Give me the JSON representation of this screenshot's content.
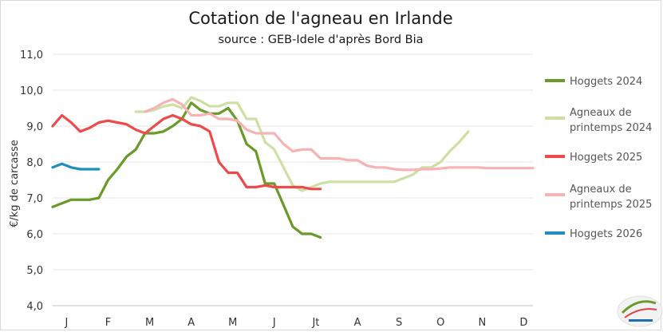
{
  "chart_data": {
    "type": "line",
    "title": "Cotation de l'agneau en Irlande",
    "subtitle": "source : GEB-Idele d'après Bord Bia",
    "ylabel": "€/kg de carcasse",
    "xlabel": "",
    "ylim": [
      4.0,
      11.0
    ],
    "yticks": [
      "4,0",
      "5,0",
      "6,0",
      "7,0",
      "8,0",
      "9,0",
      "10,0",
      "11,0"
    ],
    "xlim": [
      1,
      53
    ],
    "xtick_labels": [
      {
        "label": "J",
        "week": 2.5
      },
      {
        "label": "F",
        "week": 7
      },
      {
        "label": "M",
        "week": 11.5
      },
      {
        "label": "A",
        "week": 16
      },
      {
        "label": "M",
        "week": 20.5
      },
      {
        "label": "J",
        "week": 25
      },
      {
        "label": "Jt",
        "week": 29.5
      },
      {
        "label": "A",
        "week": 34
      },
      {
        "label": "S",
        "week": 38.5
      },
      {
        "label": "O",
        "week": 43
      },
      {
        "label": "N",
        "week": 47.5
      },
      {
        "label": "D",
        "week": 52
      }
    ],
    "grid": "horizontal",
    "legend_position": "right",
    "series": [
      {
        "name": "Hoggets 2024",
        "color": "#6a9a2a",
        "x": [
          1,
          2,
          3,
          4,
          5,
          6,
          7,
          8,
          9,
          10,
          11,
          12,
          13,
          14,
          15,
          16,
          17,
          18,
          19,
          20,
          21,
          22,
          23,
          24,
          25,
          26,
          27,
          28,
          29,
          30,
          31,
          32
        ],
        "y": [
          6.75,
          6.85,
          6.95,
          6.95,
          6.95,
          7.0,
          7.5,
          7.8,
          8.15,
          8.35,
          8.8,
          8.8,
          8.85,
          9.0,
          9.2,
          9.65,
          9.45,
          9.35,
          9.35,
          9.5,
          9.15,
          8.5,
          8.3,
          7.4,
          7.4,
          6.8,
          6.2,
          6.0,
          6.0,
          5.9,
          null,
          null
        ]
      },
      {
        "name": "Agneaux de printemps 2024",
        "color": "#cde0a4",
        "x": [
          10,
          11,
          12,
          13,
          14,
          15,
          16,
          17,
          18,
          19,
          20,
          21,
          22,
          23,
          24,
          25,
          26,
          27,
          28,
          29,
          30,
          31,
          32,
          33,
          34,
          35,
          36,
          37,
          38,
          39,
          40,
          41,
          42,
          43,
          44,
          45,
          46,
          47
        ],
        "y": [
          9.4,
          9.4,
          9.45,
          9.55,
          9.6,
          9.5,
          9.8,
          9.7,
          9.55,
          9.55,
          9.65,
          9.65,
          9.2,
          9.2,
          8.55,
          8.35,
          7.85,
          7.35,
          7.2,
          7.3,
          7.4,
          7.45,
          7.45,
          7.45,
          7.45,
          7.45,
          7.45,
          7.45,
          7.45,
          7.55,
          7.65,
          7.85,
          7.85,
          8.0,
          8.3,
          8.55,
          8.85,
          null
        ]
      },
      {
        "name": "Hoggets 2025",
        "color": "#ee4a4a",
        "x": [
          1,
          2,
          3,
          4,
          5,
          6,
          7,
          8,
          9,
          10,
          11,
          12,
          13,
          14,
          15,
          16,
          17,
          18,
          19,
          20,
          21,
          22,
          23,
          24,
          25,
          26,
          27,
          28,
          29,
          30
        ],
        "y": [
          9.0,
          9.3,
          9.1,
          8.85,
          8.95,
          9.1,
          9.15,
          9.1,
          9.05,
          8.9,
          8.8,
          9.0,
          9.2,
          9.3,
          9.2,
          9.05,
          9.0,
          8.85,
          8.0,
          7.7,
          7.7,
          7.3,
          7.3,
          7.35,
          7.3,
          7.3,
          7.3,
          7.3,
          7.25,
          7.25
        ]
      },
      {
        "name": "Agneaux de printemps 2025",
        "color": "#f7b3b3",
        "x": [
          11,
          12,
          13,
          14,
          15,
          16,
          17,
          18,
          19,
          20,
          21,
          22,
          23,
          24,
          25,
          26,
          27,
          28,
          29,
          30,
          31,
          32,
          33,
          34,
          35,
          36,
          37,
          38,
          39,
          40,
          41,
          42,
          43,
          44,
          45,
          46,
          47,
          48,
          49,
          50,
          51,
          52,
          53
        ],
        "y": [
          9.4,
          9.5,
          9.65,
          9.75,
          9.6,
          9.3,
          9.3,
          9.35,
          9.2,
          9.2,
          9.15,
          8.9,
          8.8,
          8.8,
          8.8,
          8.5,
          8.3,
          8.35,
          8.35,
          8.1,
          8.1,
          8.1,
          8.05,
          8.05,
          7.9,
          7.85,
          7.85,
          7.8,
          7.78,
          7.78,
          7.8,
          7.8,
          7.82,
          7.85,
          7.85,
          7.85,
          7.85,
          7.83,
          7.83,
          7.83,
          7.83,
          7.83,
          7.83
        ]
      },
      {
        "name": "Hoggets 2026",
        "color": "#1f8ebf",
        "x": [
          1,
          2,
          3,
          4,
          5,
          6
        ],
        "y": [
          7.85,
          7.95,
          7.85,
          7.8,
          7.8,
          7.8
        ]
      }
    ]
  }
}
